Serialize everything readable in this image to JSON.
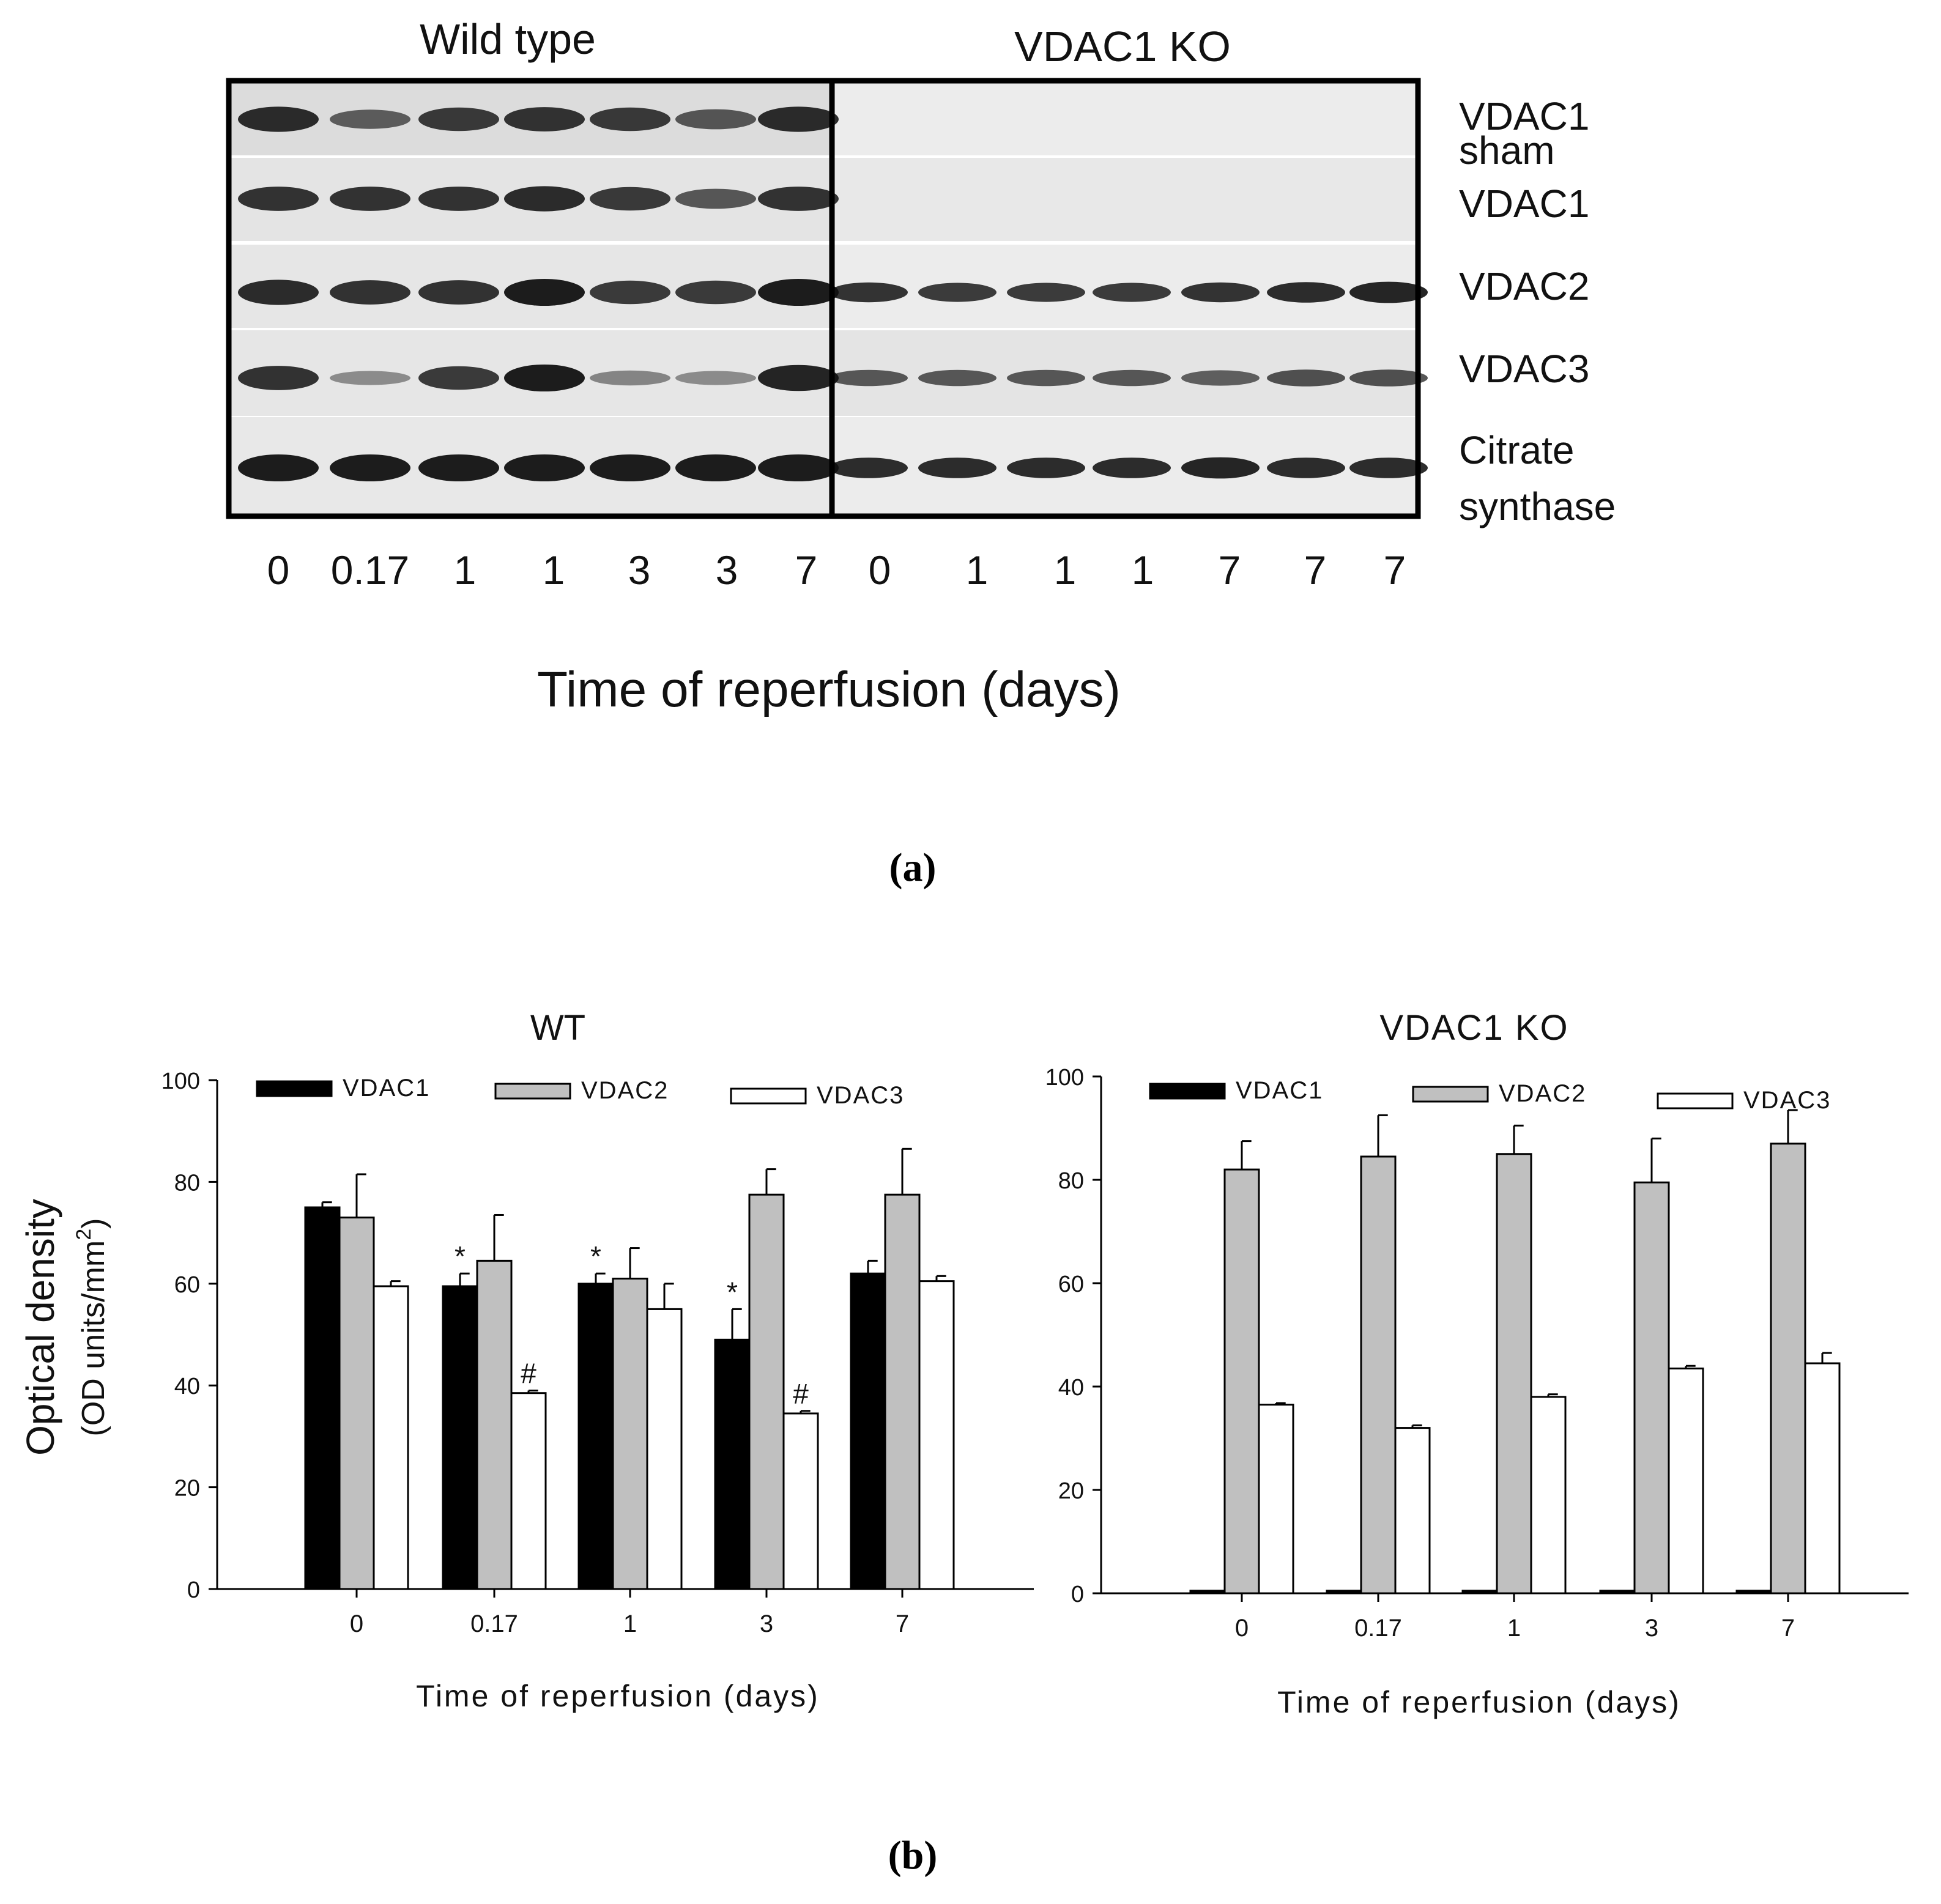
{
  "blot": {
    "groups": [
      "Wild type",
      "VDAC1 KO"
    ],
    "row_labels": [
      "VDAC1 sham",
      "VDAC1",
      "VDAC2",
      "VDAC3",
      "Citrate synthase"
    ],
    "row_label_lines": [
      [
        "VDAC1",
        "sham"
      ],
      [
        "VDAC1"
      ],
      [
        "VDAC2"
      ],
      [
        "VDAC3"
      ],
      [
        "Citrate",
        "synthase"
      ]
    ],
    "lane_labels_wt": [
      "0",
      "0.17",
      "1",
      "1",
      "3",
      "3",
      "7"
    ],
    "lane_labels_ko": [
      "0",
      "1",
      "1",
      "1",
      "7",
      "7",
      "7"
    ],
    "xlabel": "Time of reperfusion (days)",
    "band_intensity": {
      "wt": [
        [
          0.9,
          0.55,
          0.8,
          0.85,
          0.8,
          0.6,
          0.9
        ],
        [
          0.85,
          0.85,
          0.85,
          0.9,
          0.8,
          0.6,
          0.85
        ],
        [
          0.9,
          0.85,
          0.85,
          1.0,
          0.8,
          0.8,
          1.0
        ],
        [
          0.85,
          0.25,
          0.8,
          1.0,
          0.3,
          0.25,
          0.95
        ],
        [
          1.0,
          1.0,
          1.0,
          1.0,
          1.0,
          1.0,
          1.0
        ]
      ],
      "ko": [
        [
          0,
          0,
          0,
          0,
          0,
          0,
          0
        ],
        [
          0,
          0,
          0,
          0,
          0,
          0,
          0
        ],
        [
          0.85,
          0.8,
          0.8,
          0.8,
          0.85,
          0.9,
          0.95
        ],
        [
          0.6,
          0.6,
          0.6,
          0.6,
          0.55,
          0.65,
          0.65
        ],
        [
          0.9,
          0.9,
          0.9,
          0.9,
          0.95,
          0.9,
          0.9
        ]
      ]
    }
  },
  "panel_labels": {
    "a": "(a)",
    "b": "(b)"
  },
  "colors": {
    "VDAC1": "#000000",
    "VDAC2": "#c0c0c0",
    "VDAC3": "#ffffff",
    "frame": "#000000"
  },
  "chart_data": [
    {
      "type": "bar",
      "title": "WT",
      "categories": [
        "0",
        "0.17",
        "1",
        "3",
        "7"
      ],
      "series": [
        {
          "name": "VDAC1",
          "values": [
            75,
            59.5,
            60,
            49,
            62
          ],
          "errors": [
            1,
            2.5,
            2,
            6,
            2.5
          ]
        },
        {
          "name": "VDAC2",
          "values": [
            73,
            64.5,
            61,
            77.5,
            77.5
          ],
          "errors": [
            8.5,
            9,
            6,
            5,
            9
          ]
        },
        {
          "name": "VDAC3",
          "values": [
            59.5,
            38.5,
            55,
            34.5,
            60.5
          ],
          "errors": [
            1,
            0.5,
            5,
            0.5,
            1
          ]
        }
      ],
      "annotations": [
        {
          "category": "0.17",
          "series": "VDAC1",
          "text": "*"
        },
        {
          "category": "0.17",
          "series": "VDAC3",
          "text": "#"
        },
        {
          "category": "1",
          "series": "VDAC1",
          "text": "*"
        },
        {
          "category": "3",
          "series": "VDAC1",
          "text": "*"
        },
        {
          "category": "3",
          "series": "VDAC3",
          "text": "#"
        }
      ],
      "xlabel": "Time of reperfusion (days)",
      "ylabel_lines": [
        "Optical density",
        "(OD units/mm",
        "2",
        ")"
      ],
      "ylim": [
        0,
        100
      ],
      "yticks": [
        0,
        20,
        40,
        60,
        80,
        100
      ],
      "legend": "top"
    },
    {
      "type": "bar",
      "title": "VDAC1 KO",
      "categories": [
        "0",
        "0.17",
        "1",
        "3",
        "7"
      ],
      "series": [
        {
          "name": "VDAC1",
          "values": [
            0.5,
            0.5,
            0.5,
            0.5,
            0.5
          ],
          "errors": [
            0,
            0,
            0,
            0,
            0
          ]
        },
        {
          "name": "VDAC2",
          "values": [
            82,
            84.5,
            85,
            79.5,
            87
          ],
          "errors": [
            5.5,
            8,
            5.5,
            8.5,
            6.5
          ]
        },
        {
          "name": "VDAC3",
          "values": [
            36.5,
            32,
            38,
            43.5,
            44.5
          ],
          "errors": [
            0.3,
            0.5,
            0.5,
            0.5,
            2
          ]
        }
      ],
      "annotations": [],
      "xlabel": "Time of reperfusion (days)",
      "ylim": [
        0,
        100
      ],
      "yticks": [
        0,
        20,
        40,
        60,
        80,
        100
      ],
      "legend": "top"
    }
  ]
}
